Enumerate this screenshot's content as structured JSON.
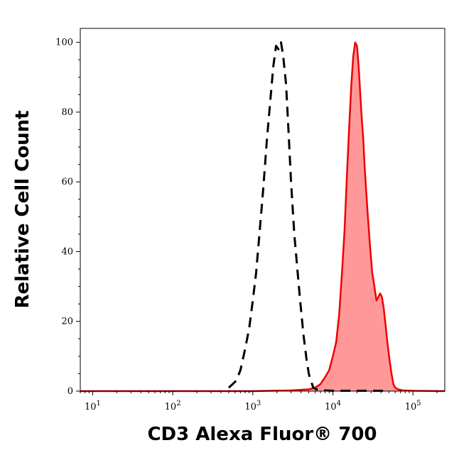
{
  "chart_data": {
    "type": "area",
    "title": "",
    "xlabel": "CD3 Alexa Fluor® 700",
    "ylabel": "Relative Cell Count",
    "x_scale": "log",
    "xlim": [
      7,
      250000
    ],
    "ylim": [
      0,
      104
    ],
    "y_ticks": [
      0,
      20,
      40,
      60,
      80,
      100
    ],
    "x_ticks": [
      {
        "base": "10",
        "exp": "1"
      },
      {
        "base": "10",
        "exp": "2"
      },
      {
        "base": "10",
        "exp": "3"
      },
      {
        "base": "10",
        "exp": "4"
      },
      {
        "base": "10",
        "exp": "5"
      }
    ],
    "grid": false,
    "series": [
      {
        "style": "dashed",
        "color": "#000000",
        "x": [
          500,
          560,
          620,
          700,
          800,
          900,
          1000,
          1100,
          1200,
          1350,
          1500,
          1650,
          1800,
          1950,
          2100,
          2250,
          2400,
          2600,
          2800,
          3000,
          3300,
          3600,
          3900,
          4300,
          4700,
          5000,
          5300,
          5700,
          6200,
          7000,
          8000,
          10000,
          15000,
          20000,
          30000,
          45000
        ],
        "y": [
          1,
          2,
          3,
          6,
          12,
          18,
          26,
          34,
          44,
          58,
          72,
          83,
          93,
          99,
          98,
          100,
          96,
          88,
          74,
          60,
          45,
          35,
          26,
          16,
          9,
          5,
          3,
          1,
          0.5,
          0.3,
          0.2,
          0.1,
          0.1,
          0.1,
          0.1,
          0.1
        ]
      },
      {
        "style": "filled",
        "color": "#ee0000",
        "fill": "#ff9999",
        "x": [
          7,
          50,
          200,
          1000,
          3000,
          5000,
          6000,
          7000,
          8000,
          9000,
          10000,
          11000,
          12000,
          13000,
          14000,
          15000,
          16000,
          17000,
          18000,
          19000,
          20000,
          21000,
          22000,
          23000,
          24000,
          25000,
          27000,
          29000,
          31000,
          33000,
          35000,
          37000,
          39000,
          41000,
          43000,
          45000,
          48000,
          51000,
          54000,
          57000,
          60000,
          65000,
          75000,
          100000,
          250000
        ],
        "y": [
          0,
          0,
          0,
          0,
          0.2,
          0.5,
          1,
          2,
          4,
          6,
          10,
          14,
          22,
          34,
          46,
          62,
          76,
          88,
          96,
          100,
          99,
          93,
          85,
          78,
          72,
          64,
          52,
          42,
          34,
          30,
          26,
          27,
          28,
          27,
          24,
          20,
          14,
          9,
          5,
          2,
          1,
          0.5,
          0.2,
          0.1,
          0
        ]
      }
    ]
  }
}
